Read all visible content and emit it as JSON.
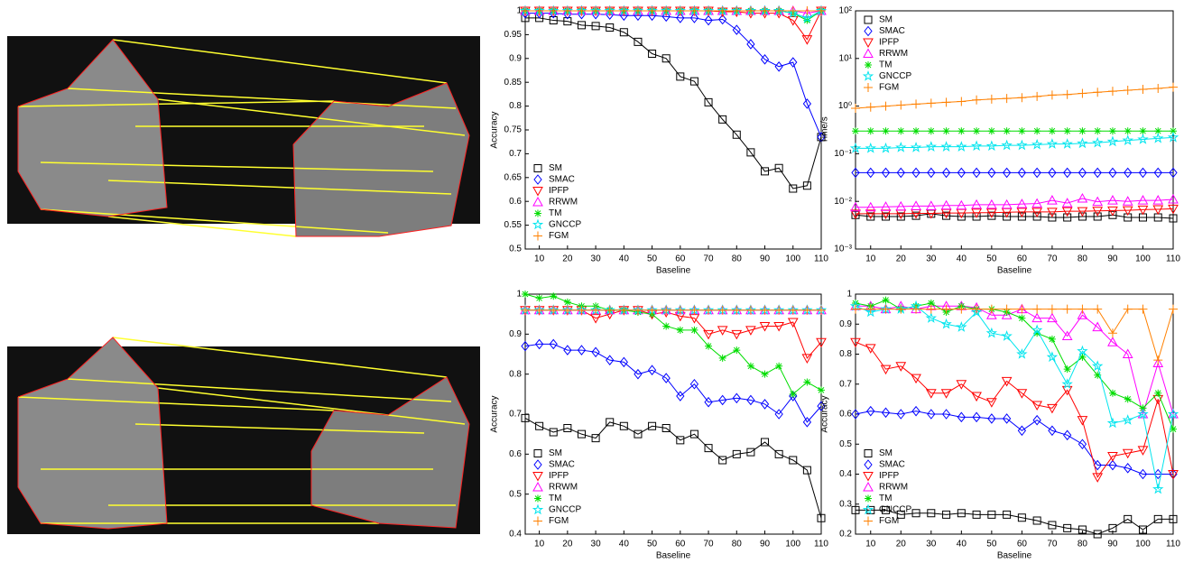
{
  "chart_data": [
    {
      "type": "line",
      "xlabel": "Baseline",
      "ylabel": "Accuracy",
      "legend": "lower left",
      "x": [
        5,
        10,
        15,
        20,
        25,
        30,
        35,
        40,
        45,
        50,
        55,
        60,
        65,
        70,
        75,
        80,
        85,
        90,
        95,
        100,
        105,
        110
      ],
      "xlim": [
        5,
        110
      ],
      "xticks": [
        10,
        20,
        30,
        40,
        50,
        60,
        70,
        80,
        90,
        100,
        110
      ],
      "ylim": [
        0.5,
        1
      ],
      "yticks": [
        0.5,
        0.55,
        0.6,
        0.65,
        0.7,
        0.75,
        0.8,
        0.85,
        0.9,
        0.95,
        1
      ],
      "series": [
        {
          "name": "SM",
          "color": "#000000",
          "marker": "square",
          "values": [
            0.985,
            0.985,
            0.98,
            0.978,
            0.97,
            0.968,
            0.965,
            0.955,
            0.935,
            0.91,
            0.9,
            0.862,
            0.852,
            0.808,
            0.772,
            0.74,
            0.703,
            0.663,
            0.67,
            0.627,
            0.633,
            0.735
          ]
        },
        {
          "name": "SMAC",
          "color": "#0000ff",
          "marker": "diamond",
          "values": [
            0.995,
            0.995,
            0.995,
            0.993,
            0.993,
            0.993,
            0.992,
            0.99,
            0.99,
            0.99,
            0.988,
            0.985,
            0.985,
            0.98,
            0.982,
            0.96,
            0.93,
            0.898,
            0.883,
            0.892,
            0.805,
            0.735
          ]
        },
        {
          "name": "IPFP",
          "color": "#ff0000",
          "marker": "tri-down",
          "values": [
            1,
            1,
            1,
            1,
            1,
            1,
            1,
            1,
            1,
            1,
            1,
            1,
            1,
            1,
            0.998,
            0.998,
            0.995,
            0.995,
            0.995,
            0.98,
            0.94,
            1
          ]
        },
        {
          "name": "RRWM",
          "color": "#ff00ff",
          "marker": "tri-up",
          "values": [
            1,
            1,
            1,
            1,
            1,
            1,
            1,
            1,
            1,
            1,
            1,
            1,
            1,
            1,
            1,
            1,
            1,
            1,
            1,
            1,
            0.995,
            1
          ]
        },
        {
          "name": "TM",
          "color": "#00dd00",
          "marker": "asterisk",
          "values": [
            1,
            1,
            1,
            1,
            1,
            1,
            1,
            1,
            1,
            1,
            1,
            1,
            1,
            1,
            1,
            1,
            1,
            1,
            1,
            0.995,
            0.98,
            1
          ]
        },
        {
          "name": "GNCCP",
          "color": "#00e5ee",
          "marker": "star",
          "values": [
            1,
            1,
            1,
            1,
            1,
            1,
            1,
            1,
            1,
            1,
            1,
            1,
            1,
            1,
            1,
            1,
            1,
            1,
            1,
            0.995,
            0.985,
            1
          ]
        },
        {
          "name": "FGM",
          "color": "#ff8000",
          "marker": "plus",
          "values": [
            1,
            1,
            1,
            1,
            1,
            1,
            1,
            1,
            1,
            1,
            1,
            1,
            1,
            1,
            1,
            1,
            1,
            1,
            1,
            1,
            1,
            1
          ]
        }
      ]
    },
    {
      "type": "line",
      "xlabel": "Baseline",
      "ylabel": "Time/s",
      "legend": "upper left",
      "log_scale": true,
      "x": [
        5,
        10,
        15,
        20,
        25,
        30,
        35,
        40,
        45,
        50,
        55,
        60,
        65,
        70,
        75,
        80,
        85,
        90,
        95,
        100,
        105,
        110
      ],
      "xlim": [
        5,
        110
      ],
      "xticks": [
        10,
        20,
        30,
        40,
        50,
        60,
        70,
        80,
        90,
        100,
        110
      ],
      "ylim": [
        0.001,
        100
      ],
      "yticks": [
        {
          "value": 0.001,
          "label": "10⁻³"
        },
        {
          "value": 0.01,
          "label": "10⁻²"
        },
        {
          "value": 0.1,
          "label": "10⁻¹"
        },
        {
          "value": 1,
          "label": "10⁰"
        },
        {
          "value": 10,
          "label": "10¹"
        },
        {
          "value": 100,
          "label": "10²"
        }
      ],
      "series": [
        {
          "name": "SM",
          "color": "#000000",
          "marker": "square",
          "values": [
            0.0052,
            0.0048,
            0.0048,
            0.0048,
            0.005,
            0.0055,
            0.005,
            0.0048,
            0.0048,
            0.005,
            0.0048,
            0.0048,
            0.0048,
            0.0046,
            0.0046,
            0.0048,
            0.0048,
            0.0052,
            0.0046,
            0.0046,
            0.0046,
            0.0044
          ]
        },
        {
          "name": "SMAC",
          "color": "#0000ff",
          "marker": "diamond",
          "values": [
            0.04,
            0.04,
            0.04,
            0.04,
            0.04,
            0.04,
            0.04,
            0.04,
            0.04,
            0.04,
            0.04,
            0.04,
            0.04,
            0.04,
            0.04,
            0.04,
            0.04,
            0.04,
            0.04,
            0.04,
            0.04,
            0.04
          ]
        },
        {
          "name": "IPFP",
          "color": "#ff0000",
          "marker": "tri-down",
          "values": [
            0.0055,
            0.0055,
            0.0055,
            0.0055,
            0.0056,
            0.0056,
            0.0057,
            0.0057,
            0.0058,
            0.0058,
            0.0059,
            0.006,
            0.006,
            0.006,
            0.0062,
            0.0062,
            0.0063,
            0.0064,
            0.0065,
            0.0067,
            0.0068,
            0.007
          ]
        },
        {
          "name": "RRWM",
          "color": "#ff00ff",
          "marker": "tri-up",
          "values": [
            0.0075,
            0.0075,
            0.0077,
            0.0078,
            0.008,
            0.008,
            0.0082,
            0.0082,
            0.0085,
            0.0085,
            0.0085,
            0.0088,
            0.009,
            0.0105,
            0.0092,
            0.0115,
            0.0098,
            0.0105,
            0.01,
            0.0105,
            0.0105,
            0.011
          ]
        },
        {
          "name": "TM",
          "color": "#00dd00",
          "marker": "asterisk",
          "values": [
            0.3,
            0.3,
            0.3,
            0.3,
            0.3,
            0.3,
            0.3,
            0.3,
            0.3,
            0.3,
            0.3,
            0.3,
            0.3,
            0.3,
            0.3,
            0.3,
            0.3,
            0.3,
            0.3,
            0.3,
            0.3,
            0.3
          ]
        },
        {
          "name": "GNCCP",
          "color": "#00e5ee",
          "marker": "star",
          "values": [
            0.13,
            0.13,
            0.13,
            0.135,
            0.135,
            0.14,
            0.14,
            0.14,
            0.145,
            0.145,
            0.15,
            0.15,
            0.155,
            0.16,
            0.16,
            0.165,
            0.17,
            0.18,
            0.19,
            0.2,
            0.21,
            0.22
          ]
        },
        {
          "name": "FGM",
          "color": "#ff8000",
          "marker": "plus",
          "values": [
            0.9,
            0.95,
            1.0,
            1.05,
            1.1,
            1.15,
            1.2,
            1.25,
            1.35,
            1.4,
            1.45,
            1.5,
            1.6,
            1.7,
            1.75,
            1.85,
            1.95,
            2.05,
            2.15,
            2.25,
            2.35,
            2.5
          ]
        }
      ]
    },
    {
      "type": "line",
      "xlabel": "Baseline",
      "ylabel": "Accuracy",
      "legend": "lower left",
      "x": [
        5,
        10,
        15,
        20,
        25,
        30,
        35,
        40,
        45,
        50,
        55,
        60,
        65,
        70,
        75,
        80,
        85,
        90,
        95,
        100,
        105,
        110
      ],
      "xlim": [
        5,
        110
      ],
      "xticks": [
        10,
        20,
        30,
        40,
        50,
        60,
        70,
        80,
        90,
        100,
        110
      ],
      "ylim": [
        0.4,
        1
      ],
      "yticks": [
        0.4,
        0.5,
        0.6,
        0.7,
        0.8,
        0.9,
        1
      ],
      "series": [
        {
          "name": "SM",
          "color": "#000000",
          "marker": "square",
          "values": [
            0.69,
            0.67,
            0.655,
            0.665,
            0.65,
            0.64,
            0.68,
            0.67,
            0.65,
            0.67,
            0.665,
            0.635,
            0.65,
            0.615,
            0.585,
            0.6,
            0.605,
            0.63,
            0.6,
            0.585,
            0.56,
            0.44
          ]
        },
        {
          "name": "SMAC",
          "color": "#0000ff",
          "marker": "diamond",
          "values": [
            0.87,
            0.875,
            0.875,
            0.86,
            0.86,
            0.855,
            0.835,
            0.83,
            0.8,
            0.81,
            0.79,
            0.745,
            0.775,
            0.73,
            0.735,
            0.74,
            0.735,
            0.725,
            0.7,
            0.745,
            0.68,
            0.72
          ]
        },
        {
          "name": "IPFP",
          "color": "#ff0000",
          "marker": "tri-down",
          "values": [
            0.96,
            0.96,
            0.96,
            0.96,
            0.96,
            0.94,
            0.95,
            0.96,
            0.96,
            0.95,
            0.955,
            0.945,
            0.94,
            0.9,
            0.91,
            0.9,
            0.91,
            0.92,
            0.92,
            0.93,
            0.84,
            0.88
          ]
        },
        {
          "name": "RRWM",
          "color": "#ff00ff",
          "marker": "tri-up",
          "values": [
            0.96,
            0.96,
            0.96,
            0.96,
            0.96,
            0.96,
            0.96,
            0.96,
            0.96,
            0.96,
            0.96,
            0.96,
            0.96,
            0.96,
            0.96,
            0.96,
            0.96,
            0.96,
            0.96,
            0.96,
            0.96,
            0.96
          ]
        },
        {
          "name": "TM",
          "color": "#00dd00",
          "marker": "asterisk",
          "values": [
            1.0,
            0.99,
            0.995,
            0.98,
            0.97,
            0.97,
            0.96,
            0.96,
            0.955,
            0.95,
            0.92,
            0.91,
            0.91,
            0.87,
            0.84,
            0.86,
            0.82,
            0.8,
            0.82,
            0.75,
            0.78,
            0.76
          ]
        },
        {
          "name": "GNCCP",
          "color": "#00e5ee",
          "marker": "star",
          "values": [
            0.96,
            0.96,
            0.96,
            0.96,
            0.96,
            0.96,
            0.96,
            0.96,
            0.96,
            0.96,
            0.96,
            0.96,
            0.96,
            0.96,
            0.96,
            0.96,
            0.96,
            0.96,
            0.96,
            0.96,
            0.96,
            0.96
          ]
        },
        {
          "name": "FGM",
          "color": "#ff8000",
          "marker": "plus",
          "values": [
            0.96,
            0.96,
            0.96,
            0.96,
            0.96,
            0.96,
            0.96,
            0.96,
            0.96,
            0.96,
            0.96,
            0.96,
            0.96,
            0.96,
            0.96,
            0.96,
            0.96,
            0.96,
            0.96,
            0.96,
            0.96,
            0.96
          ]
        }
      ]
    },
    {
      "type": "line",
      "xlabel": "Baseline",
      "ylabel": "Accuracy",
      "legend": "lower left",
      "x": [
        5,
        10,
        15,
        20,
        25,
        30,
        35,
        40,
        45,
        50,
        55,
        60,
        65,
        70,
        75,
        80,
        85,
        90,
        95,
        100,
        105,
        110
      ],
      "xlim": [
        5,
        110
      ],
      "xticks": [
        10,
        20,
        30,
        40,
        50,
        60,
        70,
        80,
        90,
        100,
        110
      ],
      "ylim": [
        0.2,
        1
      ],
      "yticks": [
        0.2,
        0.3,
        0.4,
        0.5,
        0.6,
        0.7,
        0.8,
        0.9,
        1
      ],
      "series": [
        {
          "name": "SM",
          "color": "#000000",
          "marker": "square",
          "values": [
            0.28,
            0.28,
            0.28,
            0.265,
            0.27,
            0.27,
            0.265,
            0.27,
            0.265,
            0.265,
            0.265,
            0.255,
            0.245,
            0.23,
            0.22,
            0.215,
            0.2,
            0.22,
            0.25,
            0.215,
            0.25,
            0.25
          ]
        },
        {
          "name": "SMAC",
          "color": "#0000ff",
          "marker": "diamond",
          "values": [
            0.6,
            0.61,
            0.605,
            0.6,
            0.61,
            0.6,
            0.6,
            0.59,
            0.59,
            0.585,
            0.585,
            0.545,
            0.58,
            0.545,
            0.53,
            0.5,
            0.43,
            0.43,
            0.42,
            0.4,
            0.4,
            0.4
          ]
        },
        {
          "name": "IPFP",
          "color": "#ff0000",
          "marker": "tri-down",
          "values": [
            0.84,
            0.82,
            0.75,
            0.76,
            0.72,
            0.67,
            0.67,
            0.7,
            0.66,
            0.64,
            0.71,
            0.67,
            0.63,
            0.62,
            0.68,
            0.58,
            0.39,
            0.46,
            0.47,
            0.48,
            0.65,
            0.4
          ]
        },
        {
          "name": "RRWM",
          "color": "#ff00ff",
          "marker": "tri-up",
          "values": [
            0.96,
            0.96,
            0.95,
            0.96,
            0.95,
            0.96,
            0.96,
            0.96,
            0.955,
            0.93,
            0.93,
            0.95,
            0.92,
            0.92,
            0.86,
            0.93,
            0.89,
            0.84,
            0.8,
            0.6,
            0.77,
            0.6
          ]
        },
        {
          "name": "TM",
          "color": "#00dd00",
          "marker": "asterisk",
          "values": [
            0.97,
            0.96,
            0.98,
            0.95,
            0.96,
            0.97,
            0.94,
            0.96,
            0.95,
            0.95,
            0.94,
            0.92,
            0.87,
            0.85,
            0.75,
            0.79,
            0.73,
            0.67,
            0.65,
            0.62,
            0.67,
            0.55
          ]
        },
        {
          "name": "GNCCP",
          "color": "#00e5ee",
          "marker": "star",
          "values": [
            0.96,
            0.94,
            0.95,
            0.95,
            0.96,
            0.92,
            0.9,
            0.89,
            0.94,
            0.87,
            0.86,
            0.8,
            0.88,
            0.79,
            0.7,
            0.81,
            0.76,
            0.57,
            0.58,
            0.6,
            0.35,
            0.6
          ]
        },
        {
          "name": "FGM",
          "color": "#ff8000",
          "marker": "plus",
          "values": [
            0.95,
            0.95,
            0.95,
            0.95,
            0.95,
            0.95,
            0.95,
            0.95,
            0.95,
            0.95,
            0.95,
            0.95,
            0.95,
            0.95,
            0.95,
            0.95,
            0.95,
            0.87,
            0.95,
            0.95,
            0.78,
            0.95
          ]
        }
      ]
    }
  ]
}
